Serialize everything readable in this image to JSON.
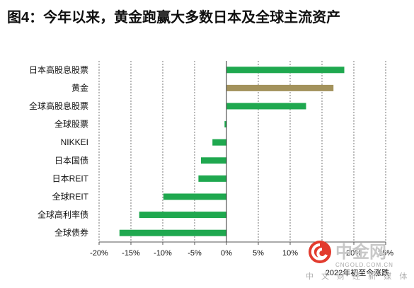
{
  "chart_data": {
    "type": "bar",
    "orientation": "horizontal",
    "title": "图4：今年以来，黄金跑赢大多数日本及全球主流资产",
    "xlabel": "2022年初至今涨跌",
    "ylabel": "",
    "categories": [
      "日本高股息股票",
      "黄金",
      "全球高股息股票",
      "全球股票",
      "NIKKEI",
      "日本国债",
      "日本REIT",
      "全球REIT",
      "全球高利率债",
      "全球债券"
    ],
    "values": [
      18.5,
      16.8,
      12.5,
      -0.3,
      -2.2,
      -4.0,
      -4.4,
      -9.9,
      -13.7,
      -16.8
    ],
    "bar_colors": [
      "#1fa84f",
      "#a3925c",
      "#1fa84f",
      "#1fa84f",
      "#1fa84f",
      "#1fa84f",
      "#1fa84f",
      "#1fa84f",
      "#1fa84f",
      "#1fa84f"
    ],
    "xlim": [
      -20,
      25
    ],
    "x_ticks": [
      -20,
      -15,
      -10,
      -5,
      0,
      5,
      10,
      15,
      20,
      25
    ],
    "x_tick_labels": [
      "-20%",
      "-15%",
      "-10%",
      "-5%",
      "0%",
      "5%",
      "10%",
      "15%",
      "20%",
      "25%"
    ],
    "grid": "vertical dashed",
    "legend": "none"
  },
  "watermark": {
    "name": "中金网",
    "url": "CNGOLD.COM.CN",
    "tagline": "中 文 财 经 新 媒 体",
    "color": "#e23b2e"
  }
}
